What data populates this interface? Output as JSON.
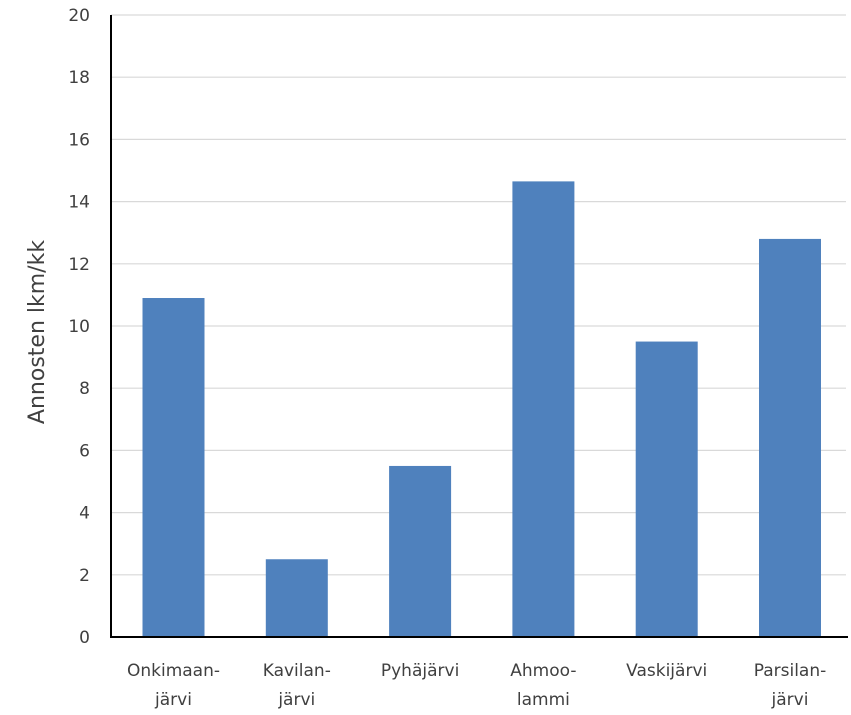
{
  "chart_data": {
    "type": "bar",
    "title": "",
    "xlabel": "",
    "ylabel": "Annosten lkm/kk",
    "categories": [
      [
        "Onkimaan-",
        "järvi"
      ],
      [
        "Kavilan-",
        "järvi"
      ],
      [
        "Pyhäjärvi"
      ],
      [
        "Ahmoo-",
        "lammi"
      ],
      [
        "Vaskijärvi"
      ],
      [
        "Parsilan-",
        "järvi"
      ]
    ],
    "values": [
      10.9,
      2.5,
      5.5,
      14.65,
      9.5,
      12.8
    ],
    "ylim": [
      0,
      20
    ],
    "yticks": [
      "0",
      "2",
      "4",
      "6",
      "8",
      "10",
      "12",
      "14",
      "16",
      "18",
      "20"
    ],
    "grid": true,
    "legend": "none",
    "bar_color": "#4f81bd",
    "grid_color": "#d9d9d9",
    "axis_color": "#000000"
  }
}
